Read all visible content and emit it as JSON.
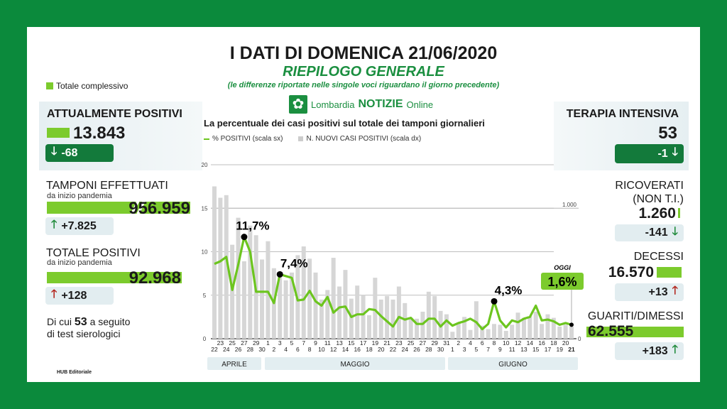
{
  "header": {
    "title": "I DATI DI DOMENICA 21/06/2020",
    "subtitle": "RIEPILOGO GENERALE",
    "note": "(le differenze riportate nelle singole voci riguardano il giorno precedente)",
    "logo_text_1": "Lombardia",
    "logo_text_2": "NOTIZIE",
    "logo_text_3": "Online"
  },
  "legend_total": "Totale complessivo",
  "colors": {
    "brand_green": "#0b8a3c",
    "bar_green": "#7ccb2d",
    "line_green": "#6cc51f",
    "up_red": "#b3261e"
  },
  "left": {
    "attualmente": {
      "label": "ATTUALMENTE POSITIVI",
      "value": "13.843",
      "delta": "-68",
      "arrow": "arrow-down-icon"
    },
    "tamponi": {
      "label": "TAMPONI EFFETTUATI",
      "sub": "da inizio pandemia",
      "value": "956.959",
      "delta": "+7.825",
      "arrow": "arrow-up-icon"
    },
    "totale": {
      "label": "TOTALE POSITIVI",
      "sub": "da inizio pandemia",
      "value": "92.968",
      "delta": "+128",
      "arrow": "arrow-up-icon"
    },
    "note_1": "Di cui ",
    "note_bold": "53",
    "note_2": " a seguito",
    "note_3": "di test sierologici"
  },
  "right": {
    "terapia": {
      "label": "TERAPIA INTENSIVA",
      "value": "53",
      "delta": "-1"
    },
    "ricoverati": {
      "label": "RICOVERATI",
      "label2": "(NON T.I.)",
      "value": "1.260",
      "delta": "-141"
    },
    "decessi": {
      "label": "DECESSI",
      "value": "16.570",
      "delta": "+13"
    },
    "guariti": {
      "label": "GUARITI/DIMESSI",
      "value": "62.555",
      "delta": "+183"
    }
  },
  "footer": "HUB Editoriale",
  "chart_data": {
    "type": "bar+line",
    "title": "La percentuale dei casi positivi sul totale dei tamponi giornalieri",
    "legend": [
      "% POSITIVI (scala sx)",
      "N. NUOVI CASI POSITIVI (scala dx)"
    ],
    "left_ylim": [
      0,
      20
    ],
    "left_ticks": [
      "0",
      "5",
      "10",
      "15",
      "20"
    ],
    "right_ylim": [
      0,
      1333
    ],
    "right_ticks": [
      "0",
      "1.000"
    ],
    "grid": true,
    "months": [
      "APRILE",
      "MAGGIO",
      "GIUGNO"
    ],
    "x": [
      "22",
      "23",
      "24",
      "25",
      "26",
      "27",
      "28",
      "29",
      "30",
      "1",
      "2",
      "3",
      "4",
      "5",
      "6",
      "7",
      "8",
      "9",
      "10",
      "11",
      "12",
      "13",
      "14",
      "15",
      "16",
      "17",
      "18",
      "19",
      "20",
      "21",
      "22",
      "23",
      "24",
      "25",
      "26",
      "27",
      "28",
      "29",
      "30",
      "31",
      "1",
      "2",
      "3",
      "4",
      "5",
      "6",
      "7",
      "8",
      "9",
      "10",
      "11",
      "12",
      "13",
      "14",
      "15",
      "16",
      "17",
      "18",
      "19",
      "20",
      "21"
    ],
    "series": [
      {
        "name": "% POSITIVI (scala sx)",
        "type": "line",
        "values": [
          8.6,
          8.9,
          9.4,
          5.6,
          8.5,
          11.7,
          10,
          5.4,
          5.4,
          5.4,
          4.1,
          7.4,
          7.2,
          7.0,
          4.4,
          4.5,
          5.5,
          4.3,
          3.8,
          4.8,
          3.0,
          3.6,
          3.7,
          2.5,
          2.8,
          2.8,
          3.4,
          3.3,
          2.6,
          2.0,
          1.4,
          2.5,
          2.2,
          2.4,
          1.7,
          1.7,
          2.3,
          2.3,
          1.4,
          2.1,
          1.5,
          1.8,
          2.0,
          2.3,
          1.9,
          1.1,
          1.7,
          4.3,
          2.1,
          1.3,
          2.1,
          1.9,
          2.3,
          2.5,
          3.8,
          2.1,
          2.2,
          2.0,
          1.6,
          1.8,
          1.6
        ]
      },
      {
        "name": "N. NUOVI CASI POSITIVI (scala dx)",
        "type": "bar",
        "values": [
          1167,
          1080,
          1100,
          720,
          927,
          593,
          867,
          793,
          607,
          747,
          540,
          500,
          447,
          507,
          640,
          707,
          613,
          507,
          300,
          373,
          620,
          400,
          527,
          307,
          407,
          333,
          180,
          467,
          300,
          327,
          300,
          400,
          273,
          160,
          153,
          207,
          360,
          327,
          213,
          187,
          53,
          120,
          167,
          67,
          287,
          100,
          73,
          113,
          107,
          60,
          107,
          200,
          160,
          173,
          207,
          113,
          187,
          160,
          93,
          107,
          93
        ]
      }
    ],
    "annotations": [
      {
        "x_index": 5,
        "label": "11,7%"
      },
      {
        "x_index": 11,
        "label": "7,4%"
      },
      {
        "x_index": 47,
        "label": "4,3%"
      },
      {
        "x_index": 60,
        "label": "1,6%",
        "tag": "OGGI"
      }
    ]
  }
}
